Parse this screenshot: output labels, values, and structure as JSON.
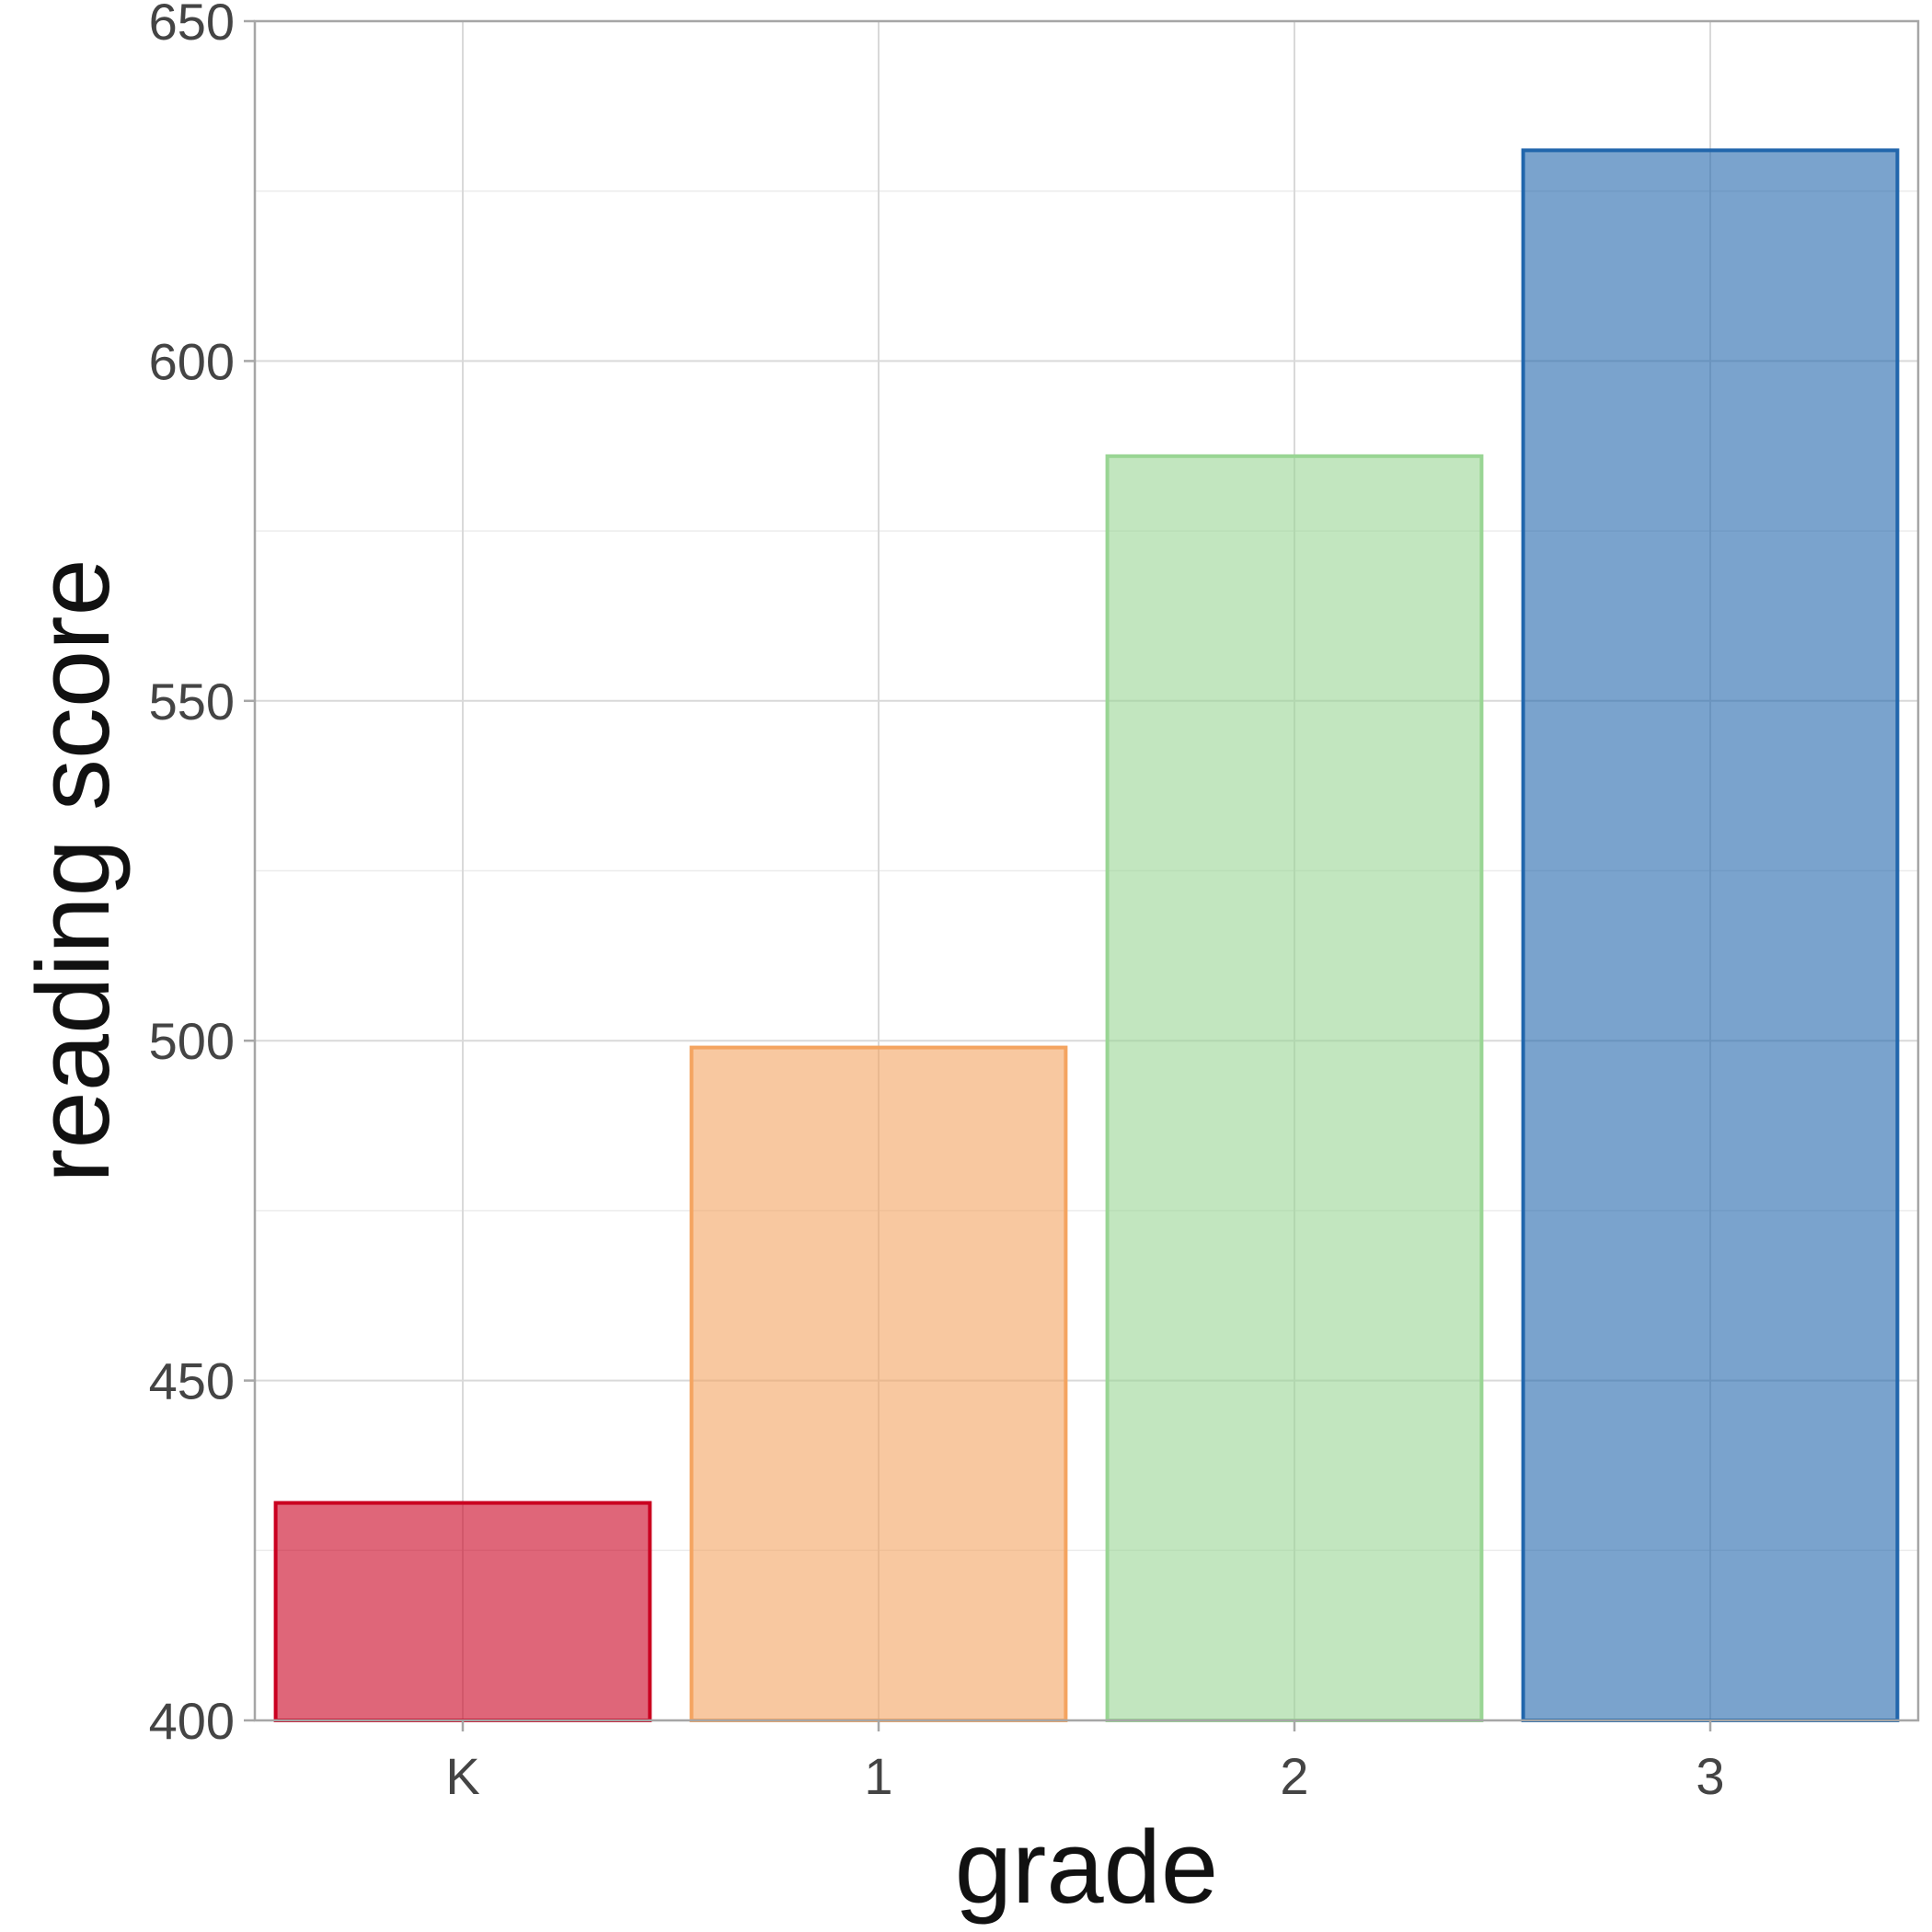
{
  "chart_data": {
    "type": "bar",
    "xlabel": "grade",
    "ylabel": "reading score",
    "categories": [
      "K",
      "1",
      "2",
      "3"
    ],
    "values": [
      432,
      499,
      586,
      631
    ],
    "ylim": [
      400,
      650
    ],
    "yticks": [
      400,
      450,
      500,
      550,
      600,
      650
    ],
    "ytick_labels": [
      "400",
      "450",
      "500",
      "550",
      "600",
      "650"
    ],
    "colors": [
      "#ca0020",
      "#f4a460",
      "#99d594",
      "#2166ac"
    ],
    "grid": true,
    "legend": "none"
  }
}
